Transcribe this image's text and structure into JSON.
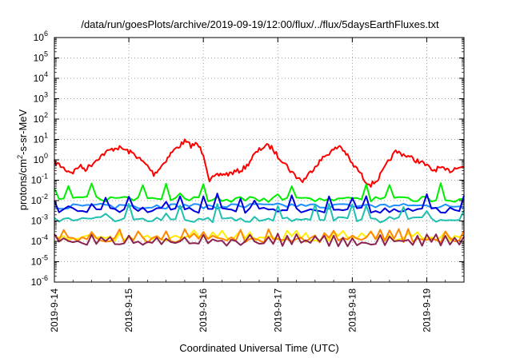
{
  "chart_data": {
    "type": "line",
    "title": "/data/run/goesPlots/archive/2019-09-19/12:00/flux/../flux/5daysEarthFluxes.txt",
    "xlabel": "Coordinated Universal Time (UTC)",
    "ylabel": "protons/cm²-s-sr-MeV",
    "ylabel_parts": {
      "pre": "protons/cm",
      "sup": "2",
      "post": "-s-sr-MeV"
    },
    "y_scale": "log",
    "ylim": [
      1e-06,
      1000000.0
    ],
    "y_ticks": [
      {
        "exp": "-6",
        "value": 1e-06
      },
      {
        "exp": "-5",
        "value": 1e-05
      },
      {
        "exp": "-4",
        "value": 0.0001
      },
      {
        "exp": "-3",
        "value": 0.001
      },
      {
        "exp": "-2",
        "value": 0.01
      },
      {
        "exp": "-1",
        "value": 0.1
      },
      {
        "exp": "0",
        "value": 1
      },
      {
        "exp": "1",
        "value": 10
      },
      {
        "exp": "2",
        "value": 100
      },
      {
        "exp": "3",
        "value": 1000
      },
      {
        "exp": "4",
        "value": 10000
      },
      {
        "exp": "5",
        "value": 100000
      },
      {
        "exp": "6",
        "value": 1000000
      }
    ],
    "y_tick_base": "10",
    "xlim": [
      "2019-09-14T00:00",
      "2019-09-19T12:00"
    ],
    "x_ticks": [
      "2019-9-14",
      "2019-9-15",
      "2019-9-16",
      "2019-9-17",
      "2019-9-18",
      "2019-9-19"
    ],
    "grid": true,
    "series": [
      {
        "color": "#ff0000",
        "points": [
          [
            "2019-09-14T00:00",
            0.8
          ],
          [
            "2019-09-14T02:00",
            0.5
          ],
          [
            "2019-09-14T04:00",
            0.3
          ],
          [
            "2019-09-14T06:00",
            0.25
          ],
          [
            "2019-09-14T08:00",
            0.5
          ],
          [
            "2019-09-14T10:00",
            0.35
          ],
          [
            "2019-09-14T12:00",
            0.6
          ],
          [
            "2019-09-14T14:00",
            1.2
          ],
          [
            "2019-09-14T16:00",
            2.0
          ],
          [
            "2019-09-14T18:00",
            3.0
          ],
          [
            "2019-09-14T20:00",
            4.0
          ],
          [
            "2019-09-14T22:00",
            3.5
          ],
          [
            "2019-09-15T00:00",
            2.5
          ],
          [
            "2019-09-15T02:00",
            1.8
          ],
          [
            "2019-09-15T04:00",
            0.9
          ],
          [
            "2019-09-15T06:00",
            0.5
          ],
          [
            "2019-09-15T08:00",
            0.2
          ],
          [
            "2019-09-15T10:00",
            0.4
          ],
          [
            "2019-09-15T12:00",
            1.0
          ],
          [
            "2019-09-15T14:00",
            2.5
          ],
          [
            "2019-09-15T16:00",
            4.5
          ],
          [
            "2019-09-15T18:00",
            8.0
          ],
          [
            "2019-09-15T20:00",
            5.0
          ],
          [
            "2019-09-15T22:00",
            6.0
          ],
          [
            "2019-09-16T00:00",
            2.0
          ],
          [
            "2019-09-16T02:00",
            0.1
          ],
          [
            "2019-09-16T04:00",
            0.15
          ],
          [
            "2019-09-16T06:00",
            0.2
          ],
          [
            "2019-09-16T08:00",
            0.2
          ],
          [
            "2019-09-16T10:00",
            0.25
          ],
          [
            "2019-09-16T12:00",
            0.3
          ],
          [
            "2019-09-16T14:00",
            0.5
          ],
          [
            "2019-09-16T16:00",
            1.5
          ],
          [
            "2019-09-16T18:00",
            3.0
          ],
          [
            "2019-09-16T20:00",
            5.0
          ],
          [
            "2019-09-16T22:00",
            4.0
          ],
          [
            "2019-09-17T00:00",
            1.5
          ],
          [
            "2019-09-17T02:00",
            0.8
          ],
          [
            "2019-09-17T04:00",
            0.3
          ],
          [
            "2019-09-17T06:00",
            0.15
          ],
          [
            "2019-09-17T08:00",
            0.09
          ],
          [
            "2019-09-17T10:00",
            0.2
          ],
          [
            "2019-09-17T12:00",
            0.5
          ],
          [
            "2019-09-17T14:00",
            1.0
          ],
          [
            "2019-09-17T16:00",
            2.0
          ],
          [
            "2019-09-17T18:00",
            3.0
          ],
          [
            "2019-09-17T20:00",
            5.0
          ],
          [
            "2019-09-17T22:00",
            2.0
          ],
          [
            "2019-09-18T00:00",
            0.6
          ],
          [
            "2019-09-18T02:00",
            0.3
          ],
          [
            "2019-09-18T04:00",
            0.1
          ],
          [
            "2019-09-18T06:00",
            0.06
          ],
          [
            "2019-09-18T08:00",
            0.1
          ],
          [
            "2019-09-18T10:00",
            0.3
          ],
          [
            "2019-09-18T12:00",
            1.0
          ],
          [
            "2019-09-18T14:00",
            2.5
          ],
          [
            "2019-09-18T16:00",
            2.0
          ],
          [
            "2019-09-18T18:00",
            1.5
          ],
          [
            "2019-09-18T20:00",
            1.0
          ],
          [
            "2019-09-18T22:00",
            0.8
          ],
          [
            "2019-09-19T00:00",
            0.5
          ],
          [
            "2019-09-19T02:00",
            0.3
          ],
          [
            "2019-09-19T04:00",
            0.4
          ],
          [
            "2019-09-19T06:00",
            0.3
          ],
          [
            "2019-09-19T08:00",
            0.3
          ],
          [
            "2019-09-19T10:00",
            0.5
          ],
          [
            "2019-09-19T12:00",
            0.45
          ]
        ]
      },
      {
        "color": "#00ee00",
        "base": 0.012,
        "amplitude": 0.06,
        "period_hours": 4
      },
      {
        "color": "#1e90ff",
        "base": 0.0055,
        "amplitude": 0.0009,
        "period_hours": 6
      },
      {
        "color": "#0000dd",
        "base": 0.0035,
        "amplitude": 0.02,
        "period_hours": 4
      },
      {
        "color": "#20c0b0",
        "base": 0.0012,
        "amplitude": 0.006,
        "period_hours": 4
      },
      {
        "color": "#ffee00",
        "base": 0.00015,
        "amplitude": 0.0002,
        "period_hours": 3
      },
      {
        "color": "#ff8800",
        "base": 0.00012,
        "amplitude": 0.0003,
        "period_hours": 3
      },
      {
        "color": "#8b2252",
        "base": 8e-05,
        "amplitude": 0.00015,
        "period_hours": 3
      }
    ]
  }
}
